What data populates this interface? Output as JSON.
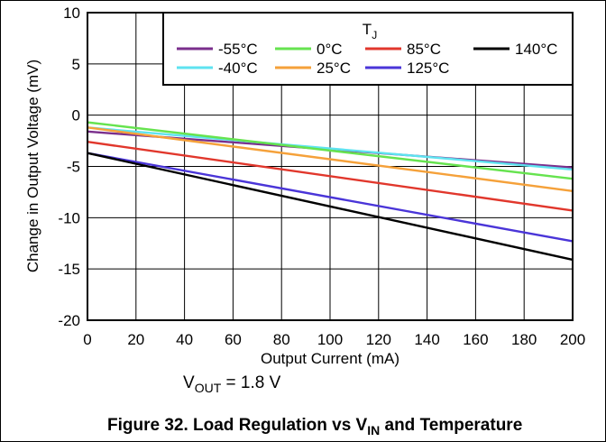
{
  "chart_data": {
    "type": "line",
    "xlabel": "Output Current (mA)",
    "ylabel": "Change in Output Voltage (mV)",
    "xlim": [
      0,
      200
    ],
    "ylim": [
      -20,
      10
    ],
    "xticks": [
      0,
      20,
      40,
      60,
      80,
      100,
      120,
      140,
      160,
      180,
      200
    ],
    "yticks": [
      10,
      5,
      0,
      -5,
      -10,
      -15,
      -20
    ],
    "grid": true,
    "legend": {
      "title_main": "T",
      "title_sub": "J",
      "placement": "top-right",
      "entries": [
        "-55°C",
        "0°C",
        "85°C",
        "140°C",
        "-40°C",
        "25°C",
        "125°C"
      ]
    },
    "series": [
      {
        "name": "-55°C",
        "color": "#7a2f8c",
        "x": [
          0,
          200
        ],
        "y": [
          -1.6,
          -5.1
        ]
      },
      {
        "name": "-40°C",
        "color": "#5ee3f0",
        "x": [
          0,
          200
        ],
        "y": [
          -1.2,
          -5.3
        ]
      },
      {
        "name": "0°C",
        "color": "#66e34f",
        "x": [
          0,
          200
        ],
        "y": [
          -0.7,
          -6.2
        ]
      },
      {
        "name": "25°C",
        "color": "#f5a13a",
        "x": [
          0,
          200
        ],
        "y": [
          -1.2,
          -7.4
        ]
      },
      {
        "name": "85°C",
        "color": "#e1372c",
        "x": [
          0,
          200
        ],
        "y": [
          -2.6,
          -9.3
        ]
      },
      {
        "name": "125°C",
        "color": "#4a35d8",
        "x": [
          0,
          200
        ],
        "y": [
          -3.7,
          -12.3
        ]
      },
      {
        "name": "140°C",
        "color": "#000000",
        "x": [
          0,
          200
        ],
        "y": [
          -3.7,
          -14.1
        ]
      }
    ]
  },
  "condition": {
    "main": "V",
    "sub": "OUT",
    "rest": " = 1.8 V"
  },
  "caption": {
    "main": "Figure 32. Load Regulation vs V",
    "sub": "IN",
    "rest": " and Temperature"
  }
}
